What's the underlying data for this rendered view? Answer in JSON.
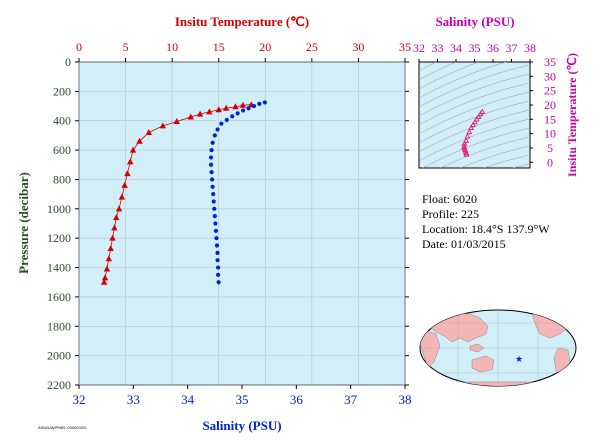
{
  "colors": {
    "temperature": "#d40000",
    "salinity": "#0022dd",
    "inset_axis": "#cc00aa",
    "axis_dark": "#2d4a2d",
    "plot_bg": "#d2eef8"
  },
  "chart_data": [
    {
      "type": "scatter",
      "title": "",
      "top_axis_label": "Insitu Temperature (℃)",
      "top_axis_ticks": [
        "0",
        "5",
        "10",
        "15",
        "20",
        "25",
        "30",
        "35"
      ],
      "top_axis_range": [
        0,
        35
      ],
      "bottom_axis_label": "Salinity (PSU)",
      "bottom_axis_ticks": [
        "32",
        "33",
        "34",
        "35",
        "36",
        "37",
        "38"
      ],
      "bottom_axis_range": [
        32,
        38
      ],
      "ylabel": "Pressure (decibar)",
      "y_ticks": [
        "0",
        "200",
        "400",
        "600",
        "800",
        "1000",
        "1200",
        "1400",
        "1600",
        "1800",
        "2000",
        "2200"
      ],
      "ylim": [
        0,
        2200
      ],
      "y_inverted": true,
      "grid": true,
      "series": [
        {
          "axis": "temperature",
          "marker": "triangle",
          "points": [
            {
              "x": 18.5,
              "y": 290
            },
            {
              "x": 17.6,
              "y": 295
            },
            {
              "x": 16.8,
              "y": 305
            },
            {
              "x": 15.8,
              "y": 315
            },
            {
              "x": 15.0,
              "y": 325
            },
            {
              "x": 14.0,
              "y": 340
            },
            {
              "x": 13.0,
              "y": 355
            },
            {
              "x": 12.0,
              "y": 375
            },
            {
              "x": 10.5,
              "y": 405
            },
            {
              "x": 9.0,
              "y": 435
            },
            {
              "x": 7.5,
              "y": 480
            },
            {
              "x": 6.5,
              "y": 540
            },
            {
              "x": 5.8,
              "y": 600
            },
            {
              "x": 5.5,
              "y": 680
            },
            {
              "x": 5.2,
              "y": 760
            },
            {
              "x": 4.9,
              "y": 840
            },
            {
              "x": 4.6,
              "y": 920
            },
            {
              "x": 4.3,
              "y": 1000
            },
            {
              "x": 4.0,
              "y": 1060
            },
            {
              "x": 3.8,
              "y": 1130
            },
            {
              "x": 3.6,
              "y": 1200
            },
            {
              "x": 3.4,
              "y": 1270
            },
            {
              "x": 3.2,
              "y": 1340
            },
            {
              "x": 3.0,
              "y": 1410
            },
            {
              "x": 2.8,
              "y": 1470
            },
            {
              "x": 2.7,
              "y": 1500
            }
          ]
        },
        {
          "axis": "salinity",
          "marker": "circle",
          "points": [
            {
              "x": 35.42,
              "y": 275
            },
            {
              "x": 35.32,
              "y": 285
            },
            {
              "x": 35.22,
              "y": 300
            },
            {
              "x": 35.12,
              "y": 315
            },
            {
              "x": 35.02,
              "y": 330
            },
            {
              "x": 34.92,
              "y": 350
            },
            {
              "x": 34.82,
              "y": 370
            },
            {
              "x": 34.72,
              "y": 395
            },
            {
              "x": 34.62,
              "y": 420
            },
            {
              "x": 34.55,
              "y": 460
            },
            {
              "x": 34.5,
              "y": 500
            },
            {
              "x": 34.46,
              "y": 550
            },
            {
              "x": 34.44,
              "y": 600
            },
            {
              "x": 34.43,
              "y": 650
            },
            {
              "x": 34.43,
              "y": 700
            },
            {
              "x": 34.44,
              "y": 750
            },
            {
              "x": 34.45,
              "y": 800
            },
            {
              "x": 34.46,
              "y": 850
            },
            {
              "x": 34.47,
              "y": 900
            },
            {
              "x": 34.48,
              "y": 950
            },
            {
              "x": 34.49,
              "y": 1000
            },
            {
              "x": 34.5,
              "y": 1050
            },
            {
              "x": 34.51,
              "y": 1100
            },
            {
              "x": 34.52,
              "y": 1150
            },
            {
              "x": 34.53,
              "y": 1200
            },
            {
              "x": 34.54,
              "y": 1250
            },
            {
              "x": 34.55,
              "y": 1300
            },
            {
              "x": 34.55,
              "y": 1350
            },
            {
              "x": 34.56,
              "y": 1400
            },
            {
              "x": 34.56,
              "y": 1450
            },
            {
              "x": 34.57,
              "y": 1500
            }
          ]
        }
      ]
    },
    {
      "type": "scatter",
      "title": "",
      "xlabel": "Salinity (PSU)",
      "x_ticks": [
        "32",
        "33",
        "34",
        "35",
        "36",
        "37",
        "38"
      ],
      "xlim": [
        32,
        38
      ],
      "ylabel": "Insitu Temperature (℃)",
      "y_ticks": [
        "0",
        "5",
        "10",
        "15",
        "20",
        "25",
        "30",
        "35"
      ],
      "ylim": [
        -2,
        35
      ],
      "points": [
        {
          "x": 34.57,
          "y": 2.7
        },
        {
          "x": 34.55,
          "y": 3.2
        },
        {
          "x": 34.52,
          "y": 3.8
        },
        {
          "x": 34.49,
          "y": 4.3
        },
        {
          "x": 34.46,
          "y": 4.9
        },
        {
          "x": 34.44,
          "y": 5.5
        },
        {
          "x": 34.45,
          "y": 6.5
        },
        {
          "x": 34.55,
          "y": 7.5
        },
        {
          "x": 34.62,
          "y": 9.0
        },
        {
          "x": 34.72,
          "y": 10.5
        },
        {
          "x": 34.82,
          "y": 12.0
        },
        {
          "x": 34.92,
          "y": 13.0
        },
        {
          "x": 35.02,
          "y": 14.0
        },
        {
          "x": 35.12,
          "y": 15.0
        },
        {
          "x": 35.22,
          "y": 15.8
        },
        {
          "x": 35.32,
          "y": 16.8
        },
        {
          "x": 35.42,
          "y": 17.6
        }
      ]
    }
  ],
  "info": {
    "float": "Float: 6020",
    "profile": "Profile: 225",
    "location": "Location: 18.4°S 137.9°W",
    "date": "Date: 01/03/2015"
  },
  "map": {
    "marker_lat": -18.4,
    "marker_lon": -137.9
  },
  "footer_small": "ASM/UW/PMEL 0000002/0"
}
